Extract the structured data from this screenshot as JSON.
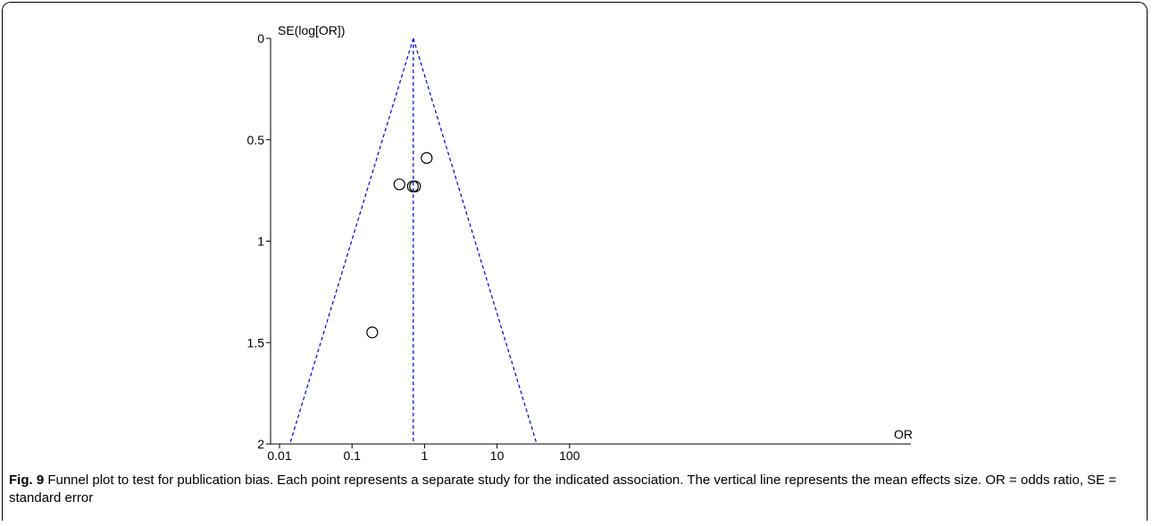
{
  "chart_data": {
    "type": "scatter",
    "xlabel": "OR",
    "ylabel": "SE(log[OR])",
    "x_scale": "log",
    "xlim": [
      0.01,
      100
    ],
    "ylim": [
      0,
      2
    ],
    "y_inverted": true,
    "x_ticks": [
      "0.01",
      "0.1",
      "1",
      "10",
      "100"
    ],
    "y_ticks": [
      "0",
      "0.5",
      "1",
      "1.5",
      "2"
    ],
    "grid": false,
    "points": [
      {
        "x": 1.07,
        "y": 0.59
      },
      {
        "x": 0.45,
        "y": 0.72
      },
      {
        "x": 0.69,
        "y": 0.73
      },
      {
        "x": 0.74,
        "y": 0.73
      },
      {
        "x": 0.19,
        "y": 1.45
      }
    ],
    "mean_effect": 0.7,
    "line_color": "#0000cc"
  },
  "caption": {
    "label": "Fig. 9",
    "text": " Funnel plot to test for publication bias. Each point represents a separate study for the indicated association. The vertical line represents the mean effects size. OR = odds ratio, SE = standard error"
  }
}
